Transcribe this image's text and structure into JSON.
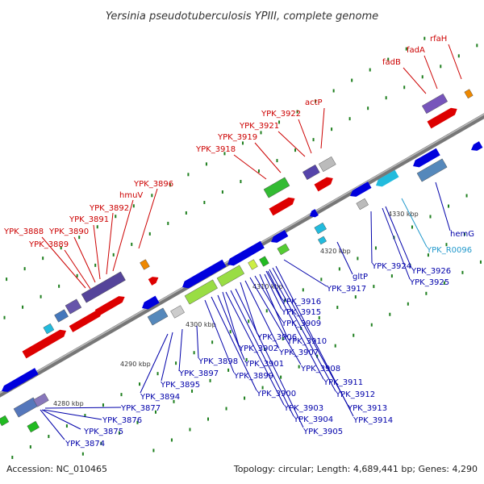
{
  "title": "Yersinia pseudotuberculosis YPIII, complete genome",
  "footer": {
    "accession": "Accession: NC_010465",
    "summary": "Topology: circular; Length: 4,689,441 bp; Genes: 4,290"
  },
  "colors": {
    "upper_label": "#cc0000",
    "lower_label": "#0000aa",
    "rna_label": "#2299cc",
    "backbone": "#888888"
  },
  "kbp_ticks": [
    "4280 kbp",
    "4290 kbp",
    "4300 kbp",
    "4310 kbp",
    "4320 kbp",
    "4330 kbp"
  ],
  "upper_genes": [
    "YPK_3888",
    "YPK_3889",
    "YPK_3890",
    "YPK_3891",
    "YPK_3892",
    "hmuV",
    "YPK_3896",
    "YPK_3918",
    "YPK_3919",
    "YPK_3921",
    "YPK_3922",
    "actP",
    "fadB",
    "fadA",
    "rfaH"
  ],
  "lower_genes": [
    "YPK_3874",
    "YPK_3875",
    "YPK_3876",
    "YPK_3877",
    "YPK_3894",
    "YPK_3895",
    "YPK_3897",
    "YPK_3898",
    "YPK_3899",
    "YPK_3900",
    "YPK_3901",
    "YPK_3902",
    "YPK_3903",
    "YPK_3904",
    "YPK_3905",
    "YPK_3906",
    "YPK_3907",
    "YPK_3908",
    "YPK_3909",
    "YPK_3910",
    "YPK_3911",
    "YPK_3912",
    "YPK_3913",
    "YPK_3914",
    "YPK_3915",
    "YPK_3916",
    "YPK_3917",
    "gltP",
    "YPK_3924",
    "YPK_3925",
    "YPK_3926",
    "YPK_R0096",
    "hemG"
  ]
}
